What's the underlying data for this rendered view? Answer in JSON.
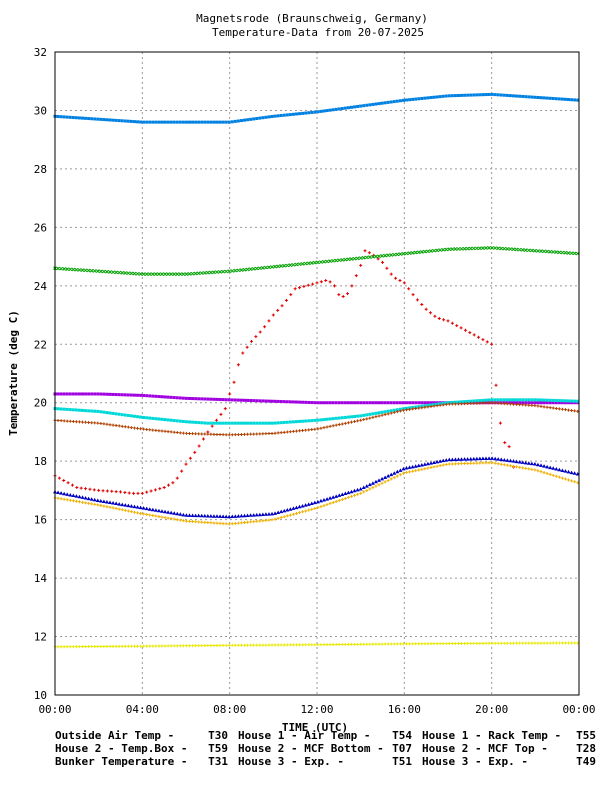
{
  "chart_data": {
    "type": "scatter",
    "title": "Magnetsrode (Braunschweig, Germany)",
    "subtitle": "Temperature-Data from 20-07-2025",
    "xlabel": "TIME (UTC)",
    "ylabel": "Temperature (deg C)",
    "xlim": [
      0,
      24
    ],
    "ylim": [
      10,
      32
    ],
    "x_ticks": [
      "00:00",
      "04:00",
      "08:00",
      "12:00",
      "16:00",
      "20:00",
      "00:00"
    ],
    "y_ticks": [
      "10",
      "12",
      "14",
      "16",
      "18",
      "20",
      "22",
      "24",
      "26",
      "28",
      "30",
      "32"
    ],
    "grid": true,
    "legend_position": "bottom",
    "series": [
      {
        "name": "Outside Air Temp",
        "tag": "T30",
        "color": "#e00000",
        "marker": "plus",
        "x": [
          0,
          1,
          2,
          3,
          3.5,
          4,
          4.5,
          5,
          5.5,
          6,
          6.5,
          7,
          7.5,
          7.8,
          8,
          8.2,
          8.5,
          9,
          9.5,
          10,
          10.5,
          11,
          11.5,
          12,
          12.5,
          12.8,
          13,
          13.3,
          13.6,
          14,
          14.2,
          14.5,
          15,
          15.5,
          16,
          16.5,
          17,
          17.5,
          18,
          18.5,
          19,
          19.5,
          20,
          20.3,
          20.5,
          20.8,
          21
        ],
        "y": [
          17.5,
          17.1,
          17.0,
          16.95,
          16.9,
          16.9,
          17.0,
          17.1,
          17.3,
          17.9,
          18.4,
          19.0,
          19.5,
          19.8,
          20.3,
          20.7,
          21.6,
          22.1,
          22.5,
          23.0,
          23.4,
          23.9,
          24.0,
          24.1,
          24.2,
          24.0,
          23.7,
          23.6,
          24.0,
          24.7,
          25.2,
          25.1,
          24.8,
          24.3,
          24.1,
          23.6,
          23.2,
          22.9,
          22.8,
          22.6,
          22.4,
          22.2,
          22.0,
          19.9,
          18.7,
          18.5,
          17.8
        ]
      },
      {
        "name": "House 1 - Air  Temp",
        "tag": "T54",
        "color": "#00a000",
        "marker": "x",
        "x": [
          0,
          2,
          4,
          6,
          8,
          10,
          12,
          14,
          16,
          18,
          20,
          22,
          24
        ],
        "y": [
          24.6,
          24.5,
          24.4,
          24.4,
          24.5,
          24.65,
          24.8,
          24.95,
          25.1,
          25.25,
          25.3,
          25.2,
          25.1
        ]
      },
      {
        "name": "House 1 - Rack Temp",
        "tag": "T55",
        "color": "#0080e0",
        "marker": "square",
        "x": [
          0,
          2,
          4,
          6,
          8,
          10,
          12,
          14,
          16,
          18,
          20,
          22,
          24
        ],
        "y": [
          29.8,
          29.7,
          29.6,
          29.6,
          29.6,
          29.8,
          29.95,
          30.15,
          30.35,
          30.5,
          30.55,
          30.45,
          30.35
        ]
      },
      {
        "name": "House 2 - Temp.Box",
        "tag": "T59",
        "color": "#a000e0",
        "marker": "square",
        "x": [
          0,
          2,
          4,
          6,
          8,
          10,
          12,
          14,
          16,
          18,
          20,
          22,
          24
        ],
        "y": [
          20.3,
          20.3,
          20.25,
          20.15,
          20.1,
          20.05,
          20.0,
          20.0,
          20.0,
          20.0,
          20.0,
          20.0,
          20.0
        ]
      },
      {
        "name": "House 2 - MCF Bottom",
        "tag": "T07",
        "color": "#00d8d8",
        "marker": "square",
        "x": [
          0,
          2,
          4,
          6,
          7,
          8,
          10,
          12,
          14,
          16,
          18,
          20,
          22,
          24
        ],
        "y": [
          19.8,
          19.7,
          19.5,
          19.35,
          19.3,
          19.3,
          19.3,
          19.4,
          19.55,
          19.8,
          20.0,
          20.1,
          20.1,
          20.05
        ]
      },
      {
        "name": "House 2 - MCF Top",
        "tag": "T28",
        "color": "#b04000",
        "marker": "plus",
        "x": [
          0,
          2,
          4,
          6,
          8,
          10,
          12,
          14,
          16,
          18,
          20,
          22,
          24
        ],
        "y": [
          19.4,
          19.3,
          19.1,
          18.95,
          18.9,
          18.95,
          19.1,
          19.4,
          19.75,
          19.95,
          20.0,
          19.9,
          19.7
        ]
      },
      {
        "name": "Bunker Temperature",
        "tag": "T31",
        "color": "#e8e800",
        "marker": "plus",
        "x": [
          0,
          4,
          8,
          12,
          16,
          20,
          24
        ],
        "y": [
          11.65,
          11.67,
          11.7,
          11.72,
          11.75,
          11.77,
          11.78
        ]
      },
      {
        "name": "House 3 - Exp.",
        "tag": "T51",
        "color": "#0000c0",
        "marker": "triangle",
        "x": [
          0,
          2,
          4,
          6,
          8,
          10,
          12,
          14,
          16,
          18,
          20,
          22,
          24
        ],
        "y": [
          16.95,
          16.65,
          16.4,
          16.15,
          16.1,
          16.2,
          16.6,
          17.05,
          17.75,
          18.05,
          18.1,
          17.9,
          17.55
        ]
      },
      {
        "name": "House 3 - Exp.",
        "tag": "T49",
        "color": "#f0b000",
        "marker": "plus",
        "x": [
          0,
          2,
          4,
          6,
          8,
          10,
          12,
          14,
          16,
          18,
          20,
          22,
          24
        ],
        "y": [
          16.75,
          16.5,
          16.2,
          15.95,
          15.85,
          16.0,
          16.4,
          16.9,
          17.6,
          17.9,
          17.95,
          17.7,
          17.25
        ]
      }
    ]
  }
}
